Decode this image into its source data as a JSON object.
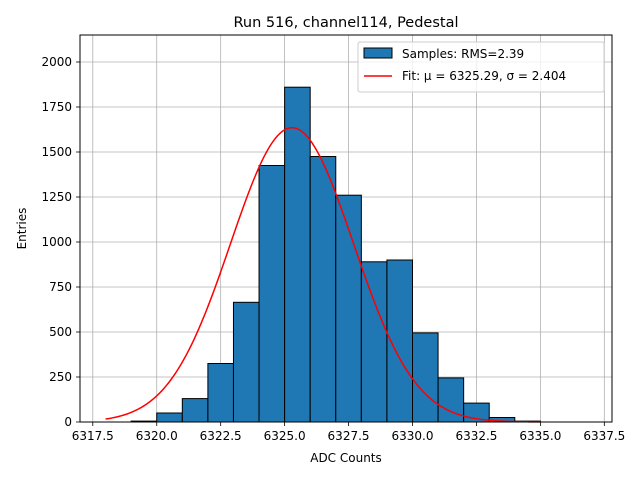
{
  "chart_data": {
    "type": "bar",
    "title": "Run 516, channel114, Pedestal",
    "xlabel": "ADC Counts",
    "ylabel": "Entries",
    "xlim": [
      6317.0,
      6337.8
    ],
    "ylim": [
      0,
      2150
    ],
    "xticks": [
      6317.5,
      6320.0,
      6322.5,
      6325.0,
      6327.5,
      6330.0,
      6332.5,
      6335.0,
      6337.5
    ],
    "xtick_labels": [
      "6317.5",
      "6320.0",
      "6322.5",
      "6325.0",
      "6327.5",
      "6330.0",
      "6332.5",
      "6335.0",
      "6337.5"
    ],
    "yticks": [
      0,
      250,
      500,
      750,
      1000,
      1250,
      1500,
      1750,
      2000
    ],
    "ytick_labels": [
      "0",
      "250",
      "500",
      "750",
      "1000",
      "1250",
      "1500",
      "1750",
      "2000"
    ],
    "grid": true,
    "legend_position": "top-right",
    "bar_color": "#1f77b4",
    "fit_color": "#ff0000",
    "bin_edges": [
      6318,
      6319,
      6320,
      6321,
      6322,
      6323,
      6324,
      6325,
      6326,
      6327,
      6328,
      6329,
      6330,
      6331,
      6332,
      6333,
      6334,
      6335,
      6336,
      6337
    ],
    "counts": [
      0,
      5,
      50,
      130,
      325,
      665,
      1425,
      1860,
      1475,
      1260,
      890,
      900,
      495,
      245,
      105,
      25,
      5,
      0,
      0
    ],
    "series": [
      {
        "name": "Samples: RMS=2.39",
        "kind": "histogram"
      },
      {
        "name": "Fit: μ = 6325.29, σ = 2.404",
        "kind": "line",
        "mu": 6325.29,
        "sigma": 2.404,
        "amplitude": 1635,
        "x_range": [
          6318,
          6335
        ]
      }
    ]
  }
}
